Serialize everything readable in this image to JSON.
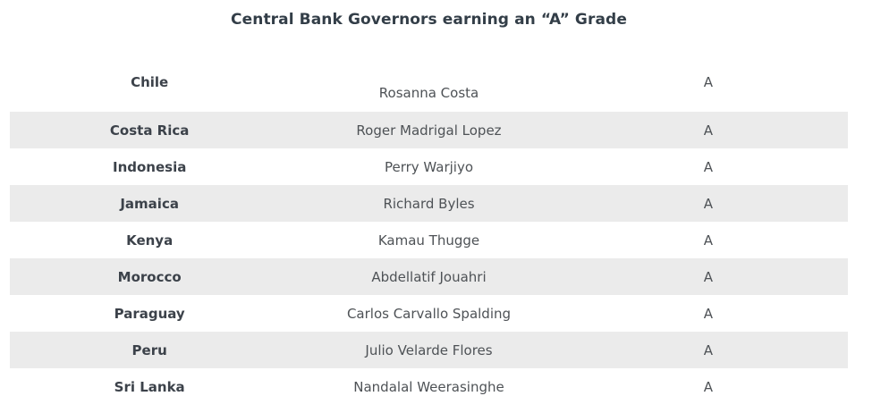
{
  "title": {
    "text": "Central Bank Governors earning an “A” Grade"
  },
  "colors": {
    "background": "#ffffff",
    "stripe": "#ebebeb",
    "title_text": "#333e48",
    "country_text": "#3c424a",
    "body_text": "#4e5256"
  },
  "table": {
    "rows": [
      {
        "country": "Chile",
        "governor": "Rosanna Costa",
        "grade": "A"
      },
      {
        "country": "Costa Rica",
        "governor": "Roger Madrigal Lopez",
        "grade": "A"
      },
      {
        "country": "Indonesia",
        "governor": "Perry Warjiyo",
        "grade": "A"
      },
      {
        "country": "Jamaica",
        "governor": "Richard Byles",
        "grade": "A"
      },
      {
        "country": "Kenya",
        "governor": "Kamau Thugge",
        "grade": "A"
      },
      {
        "country": "Morocco",
        "governor": "Abdellatif Jouahri",
        "grade": "A"
      },
      {
        "country": "Paraguay",
        "governor": "Carlos Carvallo Spalding",
        "grade": "A"
      },
      {
        "country": "Peru",
        "governor": "Julio Velarde Flores",
        "grade": "A"
      },
      {
        "country": "Sri Lanka",
        "governor": "Nandalal Weerasinghe",
        "grade": "A"
      }
    ]
  },
  "chart_data": {
    "type": "table",
    "title": "Central Bank Governors earning an “A” Grade",
    "rows": [
      [
        "Chile",
        "Rosanna Costa",
        "A"
      ],
      [
        "Costa Rica",
        "Roger Madrigal Lopez",
        "A"
      ],
      [
        "Indonesia",
        "Perry Warjiyo",
        "A"
      ],
      [
        "Jamaica",
        "Richard Byles",
        "A"
      ],
      [
        "Kenya",
        "Kamau Thugge",
        "A"
      ],
      [
        "Morocco",
        "Abdellatif Jouahri",
        "A"
      ],
      [
        "Paraguay",
        "Carlos Carvallo Spalding",
        "A"
      ],
      [
        "Peru",
        "Julio Velarde Flores",
        "A"
      ],
      [
        "Sri Lanka",
        "Nandalal Weerasinghe",
        "A"
      ]
    ],
    "layout": {
      "header_row_visible": false,
      "column_roles": [
        "country",
        "governor",
        "grade"
      ],
      "columns_aligned": "center",
      "striped_rows": true,
      "stripe_color": "#ebebeb",
      "grid": false
    }
  }
}
